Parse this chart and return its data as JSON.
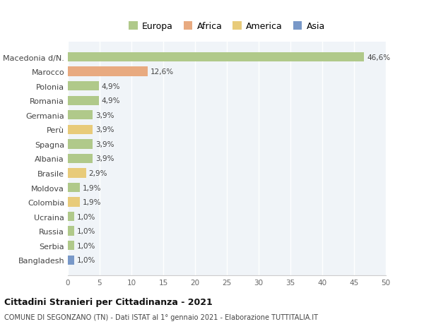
{
  "categories": [
    "Macedonia d/N.",
    "Marocco",
    "Polonia",
    "Romania",
    "Germania",
    "Perù",
    "Spagna",
    "Albania",
    "Brasile",
    "Moldova",
    "Colombia",
    "Ucraina",
    "Russia",
    "Serbia",
    "Bangladesh"
  ],
  "values": [
    46.6,
    12.6,
    4.9,
    4.9,
    3.9,
    3.9,
    3.9,
    3.9,
    2.9,
    1.9,
    1.9,
    1.0,
    1.0,
    1.0,
    1.0
  ],
  "labels": [
    "46,6%",
    "12,6%",
    "4,9%",
    "4,9%",
    "3,9%",
    "3,9%",
    "3,9%",
    "3,9%",
    "2,9%",
    "1,9%",
    "1,9%",
    "1,0%",
    "1,0%",
    "1,0%",
    "1,0%"
  ],
  "colors": [
    "#b0c98a",
    "#e8aa80",
    "#b0c98a",
    "#b0c98a",
    "#b0c98a",
    "#e8cb7a",
    "#b0c98a",
    "#b0c98a",
    "#e8cb7a",
    "#b0c98a",
    "#e8cb7a",
    "#b0c98a",
    "#b0c98a",
    "#b0c98a",
    "#7898c8"
  ],
  "legend_labels": [
    "Europa",
    "Africa",
    "America",
    "Asia"
  ],
  "legend_colors": [
    "#b0c98a",
    "#e8aa80",
    "#e8cb7a",
    "#7898c8"
  ],
  "title_bold": "Cittadini Stranieri per Cittadinanza - 2021",
  "subtitle": "COMUNE DI SEGONZANO (TN) - Dati ISTAT al 1° gennaio 2021 - Elaborazione TUTTITALIA.IT",
  "xlim": [
    0,
    50
  ],
  "xticks": [
    0,
    5,
    10,
    15,
    20,
    25,
    30,
    35,
    40,
    45,
    50
  ],
  "plot_bg_color": "#f0f4f8",
  "background_color": "#ffffff",
  "grid_color": "#ffffff"
}
